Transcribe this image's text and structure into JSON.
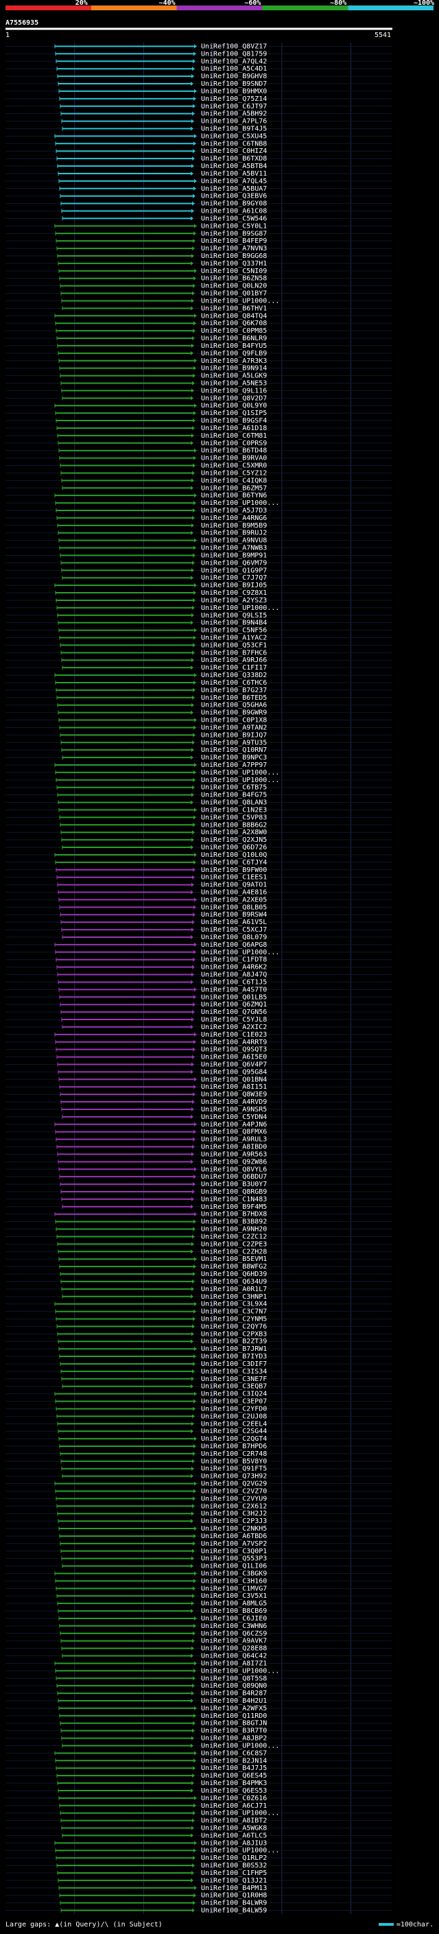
{
  "chart_data": {
    "type": "alignment-overview",
    "title": "A7556935",
    "scale": {
      "start_label": "1",
      "end_label": "5541",
      "start": 1,
      "end": 5541
    },
    "legend": [
      {
        "label": "20%",
        "color": "#e0262a"
      },
      {
        "label": "~40%",
        "color": "#f07f1e"
      },
      {
        "label": "~60%",
        "color": "#9a35b6"
      },
      {
        "label": "~80%",
        "color": "#2aa12a"
      },
      {
        "label": "~100%",
        "color": "#2bc4d9"
      }
    ],
    "group_breaks": [
      24,
      110,
      157,
      256
    ],
    "hits": [
      "UniRef100_Q8VZ17",
      "UniRef100_Q81759",
      "UniRef100_A7QL42",
      "UniRef100_A5C4D1",
      "UniRef100_B9GHV8",
      "UniRef100_B9SND7",
      "UniRef100_B9HMX0",
      "UniRef100_Q75Z14",
      "UniRef100_C6JT97",
      "UniRef100_A5BH92",
      "UniRef100_A7PL76",
      "UniRef100_B9T4J5",
      "UniRef100_C5XU45",
      "UniRef100_C6TNB8",
      "UniRef100_C0HIZ4",
      "UniRef100_B6TXD8",
      "UniRef100_A5BTB4",
      "UniRef100_A5BV11",
      "UniRef100_A7QL45",
      "UniRef100_A5BUA7",
      "UniRef100_Q3EBV6",
      "UniRef100_B9GY08",
      "UniRef100_A61C08",
      "UniRef100_C5W546",
      "UniRef100_C5Y0L1",
      "UniRef100_B9SG87",
      "UniRef100_B4FEP9",
      "UniRef100_A7NVN3",
      "UniRef100_B9GG68",
      "UniRef100_Q337H1",
      "UniRef100_C5NI09",
      "UniRef100_B6ZN58",
      "UniRef100_Q0LN20",
      "UniRef100_Q01BY7",
      "UniRef100_UP1000...",
      "UniRef100_B6THV1",
      "UniRef100_Q84TQ4",
      "UniRef100_Q6K708",
      "UniRef100_C0PM85",
      "UniRef100_B6NLR9",
      "UniRef100_B4FYU5",
      "UniRef100_Q9FLB9",
      "UniRef100_A7R3K3",
      "UniRef100_B9N914",
      "UniRef100_A5LGK9",
      "UniRef100_A5NE53",
      "UniRef100_Q9L116",
      "UniRef100_Q8V2D7",
      "UniRef100_Q0L9Y0",
      "UniRef100_Q1SIP5",
      "UniRef100_B9GSF4",
      "UniRef100_A61D18",
      "UniRef100_C6TM81",
      "UniRef100_C0PRS9",
      "UniRef100_B6TD48",
      "UniRef100_B9RVA0",
      "UniRef100_C5XMR0",
      "UniRef100_C5YZ12",
      "UniRef100_C4IQK8",
      "UniRef100_B6ZM57",
      "UniRef100_B6TYN6",
      "UniRef100_UP1000...",
      "UniRef100_A5J7D3",
      "UniRef100_A4RNG6",
      "UniRef100_B9M5B9",
      "UniRef100_B9RUJ2",
      "UniRef100_A9NVU8",
      "UniRef100_A7NWB3",
      "UniRef100_B9MP91",
      "UniRef100_Q6VM79",
      "UniRef100_Q1G9P7",
      "UniRef100_C7J7Q7",
      "UniRef100_B9IJ05",
      "UniRef100_C9Z8X1",
      "UniRef100_A2YSZ3",
      "UniRef100_UP1000...",
      "UniRef100_Q9LSI5",
      "UniRef100_B9N4B4",
      "UniRef100_C5NF56",
      "UniRef100_A1YAC2",
      "UniRef100_Q53CF1",
      "UniRef100_B7FHC6",
      "UniRef100_A9RJ66",
      "UniRef100_C1FI17",
      "UniRef100_Q338D2",
      "UniRef100_C6THC6",
      "UniRef100_B7G237",
      "UniRef100_B6TED5",
      "UniRef100_Q5GHA6",
      "UniRef100_B9GWR9",
      "UniRef100_C0P1X8",
      "UniRef100_A9TAN2",
      "UniRef100_B9IJQ7",
      "UniRef100_A9TU35",
      "UniRef100_Q10RN7",
      "UniRef100_B9NPC3",
      "UniRef100_A7PP97",
      "UniRef100_UP1000...",
      "UniRef100_UP1000...",
      "UniRef100_C6TB75",
      "UniRef100_B4FG75",
      "UniRef100_Q8LAN3",
      "UniRef100_C1N2E3",
      "UniRef100_C5VP83",
      "UniRef100_B8B6G2",
      "UniRef100_A2X8W0",
      "UniRef100_Q2XJN5",
      "UniRef100_Q6D726",
      "UniRef100_Q10L0Q",
      "UniRef100_C6TJY4",
      "UniRef100_B9FW00",
      "UniRef100_C1EES1",
      "UniRef100_Q9ATO1",
      "UniRef100_A4E816",
      "UniRef100_A2XE05",
      "UniRef100_Q8LB05",
      "UniRef100_B9RSW4",
      "UniRef100_A61V5L",
      "UniRef100_C5XCJ7",
      "UniRef100_Q8L079",
      "UniRef100_Q6APG8",
      "UniRef100_UP1000...",
      "UniRef100_C1FDT8",
      "UniRef100_A4R6K2",
      "UniRef100_A8J47Q",
      "UniRef100_C6T1J5",
      "UniRef100_A4S7T0",
      "UniRef100_Q01LB5",
      "UniRef100_Q6ZMQ1",
      "UniRef100_Q7GN56",
      "UniRef100_C5YJL8",
      "UniRef100_A2XIC2",
      "UniRef100_C1E023",
      "UniRef100_A4RRT9",
      "UniRef100_Q9SQT3",
      "UniRef100_A6I5E0",
      "UniRef100_Q6V4P7",
      "UniRef100_Q95G84",
      "UniRef100_Q01BN4",
      "UniRef100_A8I151",
      "UniRef100_Q8W3E9",
      "UniRef100_A4RVD9",
      "UniRef100_A9NSR5",
      "UniRef100_C5YDN4",
      "UniRef100_A4PJN6",
      "UniRef100_Q8FMX6",
      "UniRef100_A9RUL3",
      "UniRef100_A8IBD0",
      "UniRef100_A9R563",
      "UniRef100_Q9ZW86",
      "UniRef100_Q8VYL6",
      "UniRef100_Q6BDU7",
      "UniRef100_B3U0Y7",
      "UniRef100_Q8RGB9",
      "UniRef100_C1N483",
      "UniRef100_B9F4M5",
      "UniRef100_B7HDX8",
      "UniRef100_B3B892",
      "UniRef100_A9NH20",
      "UniRef100_C2ZC12",
      "UniRef100_C2ZPE3",
      "UniRef100_C2ZH28",
      "UniRef100_B5EVM1",
      "UniRef100_B8WFG2",
      "UniRef100_Q6HD39",
      "UniRef100_Q634U9",
      "UniRef100_A0R1L7",
      "UniRef100_C3HNP1",
      "UniRef100_C3L9X4",
      "UniRef100_C3C7N7",
      "UniRef100_C2YNM5",
      "UniRef100_C2QY76",
      "UniRef100_C2PXB3",
      "UniRef100_B2ZT39",
      "UniRef100_B7JRW1",
      "UniRef100_B7IYD3",
      "UniRef100_C3DIF7",
      "UniRef100_C3IS34",
      "UniRef100_C3NE7F",
      "UniRef100_C3EQB7",
      "UniRef100_C3IQ24",
      "UniRef100_C3EP07",
      "UniRef100_C2YFD0",
      "UniRef100_C2UJ08",
      "UniRef100_C2EEL4",
      "UniRef100_C2SG44",
      "UniRef100_C2QGT4",
      "UniRef100_B7HPD6",
      "UniRef100_C2R748",
      "UniRef100_B5V8Y0",
      "UniRef100_Q91FT5",
      "UniRef100_Q73H92",
      "UniRef100_Q2VG29",
      "UniRef100_C2VZ70",
      "UniRef100_C2VYU9",
      "UniRef100_C2X612",
      "UniRef100_C3H2J2",
      "UniRef100_C2P3J3",
      "UniRef100_C2NKH5",
      "UniRef100_A6TBD6",
      "UniRef100_A7VSP2",
      "UniRef100_C3Q0P1",
      "UniRef100_Q553P3",
      "UniRef100_Q1LI06",
      "UniRef100_C3BGK9",
      "UniRef100_C3H160",
      "UniRef100_C1MVG7",
      "UniRef100_C3V5X1",
      "UniRef100_A8MLG5",
      "UniRef100_B8CB69",
      "UniRef100_C6JIE0",
      "UniRef100_C3WHN6",
      "UniRef100_Q6CZS9",
      "UniRef100_A9AVK7",
      "UniRef100_Q28E88",
      "UniRef100_Q64C42",
      "UniRef100_A8I7Z1",
      "UniRef100_UP1000...",
      "UniRef100_Q8T5S8",
      "UniRef100_Q89QN0",
      "UniRef100_B4R287",
      "UniRef100_B4H2U1",
      "UniRef100_A2WFX5",
      "UniRef100_Q11RD0",
      "UniRef100_B8GTJN",
      "UniRef100_B3R7T0",
      "UniRef100_A8JBP2",
      "UniRef100_UP1000...",
      "UniRef100_C6C8S7",
      "UniRef100_B2JN14",
      "UniRef100_B4J7J5",
      "UniRef100_Q6ES45",
      "UniRef100_B4PMK3",
      "UniRef100_Q6ES53",
      "UniRef100_C0Z616",
      "UniRef100_A6CJ71",
      "UniRef100_UP1000...",
      "UniRef100_A8IBT2",
      "UniRef100_A5WGK8",
      "UniRef100_A6TLC5",
      "UniRef100_A8JIU3",
      "UniRef100_UP1000...",
      "UniRef100_Q1RLP2",
      "UniRef100_B0S532",
      "UniRef100_C1FHP5",
      "UniRef100_Q13J21",
      "UniRef100_B4PM13",
      "UniRef100_Q1R0H8",
      "UniRef100_B4LWR9",
      "UniRef100_B4LW59"
    ]
  },
  "footer": {
    "left": "Large gaps: ▲(in Query)/\\ (in Subject)",
    "right": "=100char."
  }
}
